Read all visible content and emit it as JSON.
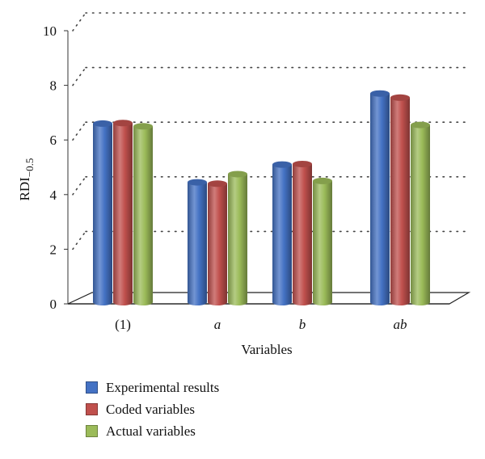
{
  "chart_data": {
    "type": "bar",
    "categories": [
      "(1)",
      "a",
      "b",
      "ab"
    ],
    "series": [
      {
        "name": "Experimental results",
        "color": "#4472C4",
        "values": [
          6.6,
          4.45,
          5.1,
          7.7
        ]
      },
      {
        "name": "Coded variables",
        "color": "#C0504D",
        "values": [
          6.62,
          4.4,
          5.12,
          7.55
        ]
      },
      {
        "name": "Actual variables",
        "color": "#9BBB59",
        "values": [
          6.5,
          4.75,
          4.5,
          6.55
        ]
      }
    ],
    "ylabel_main": "RDI",
    "ylabel_sub": "−0.5",
    "xlabel": "Variables",
    "ylim": [
      0,
      10
    ],
    "yticks": [
      "0",
      "2",
      "4",
      "6",
      "8",
      "10"
    ],
    "grid": "dotted",
    "legend_position": "bottom-left"
  }
}
